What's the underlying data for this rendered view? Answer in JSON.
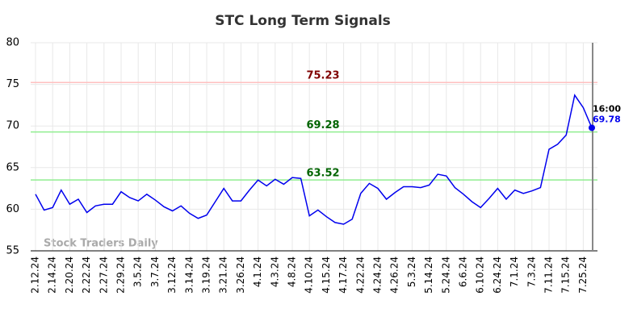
{
  "chart_data": {
    "type": "line",
    "title": "STC Long Term Signals",
    "watermark": "Stock Traders Daily",
    "categories": [
      "2.12.24",
      null,
      "2.14.24",
      null,
      "2.20.24",
      null,
      "2.22.24",
      null,
      "2.27.24",
      null,
      "2.29.24",
      null,
      "3.5.24",
      null,
      "3.7.24",
      null,
      "3.12.24",
      null,
      "3.14.24",
      null,
      "3.19.24",
      null,
      "3.21.24",
      null,
      "3.26.24",
      null,
      "4.1.24",
      null,
      "4.3.24",
      null,
      "4.8.24",
      null,
      "4.10.24",
      null,
      "4.15.24",
      null,
      "4.17.24",
      null,
      "4.22.24",
      null,
      "4.24.24",
      null,
      "4.26.24",
      null,
      "5.3.24",
      null,
      "5.14.24",
      null,
      "5.24.24",
      null,
      "6.6.24",
      null,
      "6.10.24",
      null,
      "6.24.24",
      null,
      "7.1.24",
      null,
      "7.3.24",
      null,
      "7.11.24",
      null,
      "7.15.24",
      null,
      "7.25.24",
      null
    ],
    "series": [
      {
        "name": "STC",
        "color": "#0000ee",
        "values": [
          61.8,
          59.9,
          60.2,
          62.3,
          60.6,
          61.2,
          59.6,
          60.4,
          60.6,
          60.6,
          62.1,
          61.4,
          61.0,
          61.8,
          61.1,
          60.3,
          59.8,
          60.4,
          59.5,
          58.9,
          59.3,
          60.9,
          62.5,
          61.0,
          61.0,
          62.3,
          63.5,
          62.8,
          63.6,
          63.0,
          63.8,
          63.7,
          59.2,
          59.9,
          59.1,
          58.4,
          58.2,
          58.8,
          61.9,
          63.1,
          62.5,
          61.2,
          62.0,
          62.7,
          62.7,
          62.6,
          62.9,
          64.2,
          64.0,
          62.6,
          61.8,
          60.9,
          60.2,
          61.3,
          62.5,
          61.2,
          62.3,
          61.9,
          62.2,
          62.6,
          67.2,
          67.8,
          68.9,
          73.7,
          72.2,
          69.78
        ]
      }
    ],
    "last_time": "16:00",
    "levels": [
      {
        "value": 75.23,
        "color": "#ffc0c0",
        "label_color": "#800000"
      },
      {
        "value": 69.28,
        "color": "#90ee90",
        "label_color": "#006400"
      },
      {
        "value": 63.52,
        "color": "#90ee90",
        "label_color": "#006400"
      }
    ],
    "ylim": [
      55,
      80
    ],
    "yticks": [
      55,
      60,
      65,
      70,
      75,
      80
    ],
    "grid": true
  }
}
